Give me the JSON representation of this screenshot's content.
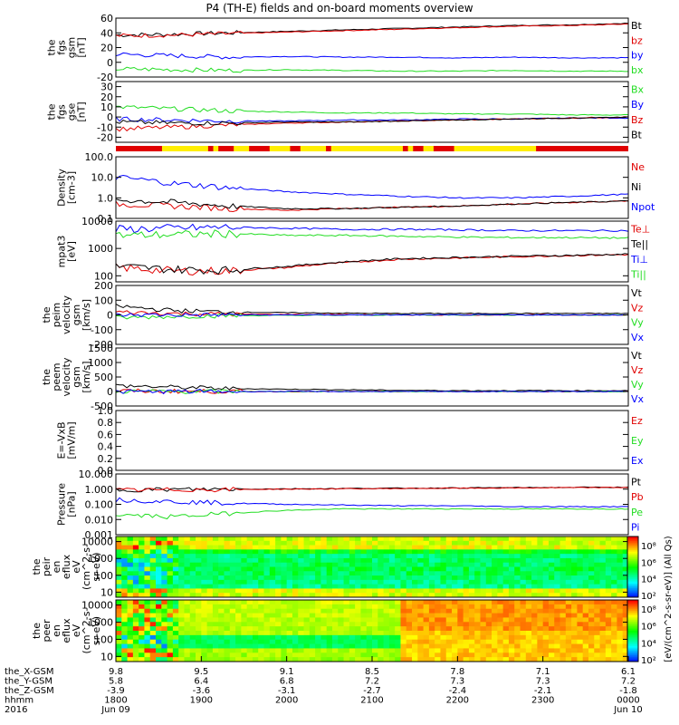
{
  "title": "P4 (TH-E) fields and on-board moments overview",
  "colors": {
    "red": "#e00000",
    "green": "#22dd22",
    "blue": "#0000ff",
    "black": "#000000",
    "yellow": "#ffee00",
    "orange": "#ff8c00"
  },
  "chart_data": [
    {
      "id": "fgs-gsm",
      "type": "line",
      "ylabel": [
        "the",
        "fgs",
        "gsm",
        "[nT]"
      ],
      "ylim": [
        -20,
        60
      ],
      "ticks": [
        "60",
        "40",
        "20",
        "0",
        "-20"
      ],
      "tickValues": [
        60,
        40,
        20,
        0,
        -20
      ],
      "series": [
        {
          "name": "Bt",
          "color": "#000000",
          "values": [
            37,
            38,
            40,
            42,
            44,
            46,
            48,
            50,
            51,
            53
          ]
        },
        {
          "name": "bz",
          "color": "#e00000",
          "values": [
            36,
            37,
            39,
            41,
            43,
            45,
            47,
            49,
            50,
            52
          ]
        },
        {
          "name": "by",
          "color": "#0000ff",
          "values": [
            11,
            9,
            7,
            8,
            7,
            7,
            6,
            7,
            6,
            6
          ]
        },
        {
          "name": "bx",
          "color": "#22dd22",
          "values": [
            -9,
            -10,
            -11,
            -10,
            -11,
            -12,
            -12,
            -11,
            -12,
            -12
          ]
        }
      ]
    },
    {
      "id": "fgs-gse",
      "type": "line",
      "ylabel": [
        "the",
        "fgs",
        "gse",
        "[nT]"
      ],
      "ylim": [
        -25,
        35
      ],
      "ticks": [
        "30",
        "20",
        "10",
        "0",
        "-10",
        "-20"
      ],
      "tickValues": [
        30,
        20,
        10,
        0,
        -10,
        -20
      ],
      "series": [
        {
          "name": "Bx",
          "color": "#22dd22",
          "values": [
            10,
            8,
            6,
            5,
            4,
            4,
            3,
            3,
            2,
            2
          ]
        },
        {
          "name": "By",
          "color": "#0000ff",
          "values": [
            -2,
            -3,
            -4,
            -4,
            -3,
            -3,
            -2,
            -2,
            -1,
            -1
          ]
        },
        {
          "name": "Bz",
          "color": "#e00000",
          "values": [
            -12,
            -10,
            -8,
            -6,
            -5,
            -4,
            -3,
            -2,
            -1,
            0
          ]
        },
        {
          "name": "Bt",
          "color": "#000000",
          "values": [
            -5,
            -6,
            -6,
            -5,
            -5,
            -4,
            -3,
            -2,
            -1,
            0
          ]
        }
      ]
    },
    {
      "id": "density",
      "type": "line",
      "scale": "log",
      "ylabel": [
        "Density",
        "[cm-3]"
      ],
      "ylim": [
        0.1,
        100
      ],
      "ticks": [
        "100.0",
        "10.0",
        "1.0",
        "0.1"
      ],
      "tickValues": [
        100,
        10,
        1,
        0.1
      ],
      "series": [
        {
          "name": "Ne",
          "color": "#e00000",
          "values": [
            0.5,
            0.4,
            0.3,
            0.25,
            0.3,
            0.35,
            0.4,
            0.5,
            0.6,
            0.7
          ]
        },
        {
          "name": "Ni",
          "color": "#000000",
          "values": [
            0.8,
            0.6,
            0.4,
            0.3,
            0.3,
            0.35,
            0.4,
            0.5,
            0.6,
            0.7
          ]
        },
        {
          "name": "Npot",
          "color": "#0000ff",
          "values": [
            10,
            5,
            3,
            2,
            1.5,
            1.2,
            1.0,
            1.0,
            1.2,
            1.5
          ]
        }
      ]
    },
    {
      "id": "temperature",
      "type": "line",
      "scale": "log",
      "ylabel": [
        "mpat3",
        "[eV]"
      ],
      "ylim": [
        60,
        10000
      ],
      "ticks": [
        "10000",
        "1000",
        "100"
      ],
      "tickValues": [
        10000,
        1000,
        100
      ],
      "series": [
        {
          "name": "Te⊥",
          "color": "#e00000",
          "values": [
            200,
            150,
            150,
            200,
            300,
            400,
            450,
            500,
            550,
            600
          ]
        },
        {
          "name": "Te||",
          "color": "#000000",
          "values": [
            220,
            170,
            160,
            220,
            320,
            420,
            470,
            520,
            560,
            620
          ]
        },
        {
          "name": "Ti⊥",
          "color": "#0000ff",
          "values": [
            5000,
            5500,
            6000,
            5500,
            5000,
            5000,
            4800,
            4500,
            4500,
            4500
          ]
        },
        {
          "name": "Ti||",
          "color": "#22dd22",
          "values": [
            3000,
            3200,
            3500,
            3000,
            3000,
            2800,
            2600,
            2500,
            2500,
            2400
          ]
        }
      ]
    },
    {
      "id": "peim-velocity",
      "type": "line",
      "ylabel": [
        "the",
        "peim",
        "velocity",
        "gsm",
        "[km/s]"
      ],
      "ylim": [
        -200,
        200
      ],
      "ticks": [
        "200",
        "100",
        "0",
        "-100",
        "-200"
      ],
      "tickValues": [
        200,
        100,
        0,
        -100,
        -200
      ],
      "series": [
        {
          "name": "Vt",
          "color": "#000000",
          "values": [
            60,
            30,
            20,
            15,
            12,
            10,
            10,
            10,
            10,
            10
          ]
        },
        {
          "name": "Vz",
          "color": "#e00000",
          "values": [
            20,
            10,
            5,
            3,
            2,
            0,
            0,
            0,
            0,
            0
          ]
        },
        {
          "name": "Vy",
          "color": "#22dd22",
          "values": [
            -20,
            -10,
            -5,
            -3,
            -2,
            0,
            0,
            0,
            0,
            0
          ]
        },
        {
          "name": "Vx",
          "color": "#0000ff",
          "values": [
            0,
            0,
            0,
            0,
            0,
            0,
            0,
            0,
            0,
            0
          ]
        }
      ]
    },
    {
      "id": "peem-velocity",
      "type": "line",
      "ylabel": [
        "the",
        "peem",
        "velocity",
        "gsm",
        "[km/s]"
      ],
      "ylim": [
        -500,
        1500
      ],
      "ticks": [
        "1500",
        "1000",
        "500",
        "0",
        "-500"
      ],
      "tickValues": [
        1500,
        1000,
        500,
        0,
        -500
      ],
      "series": [
        {
          "name": "Vt",
          "color": "#000000",
          "values": [
            200,
            150,
            100,
            80,
            60,
            40,
            30,
            30,
            30,
            30
          ]
        },
        {
          "name": "Vz",
          "color": "#e00000",
          "values": [
            20,
            10,
            0,
            0,
            0,
            0,
            0,
            0,
            0,
            0
          ]
        },
        {
          "name": "Vy",
          "color": "#22dd22",
          "values": [
            0,
            0,
            0,
            0,
            0,
            0,
            0,
            0,
            0,
            0
          ]
        },
        {
          "name": "Vx",
          "color": "#0000ff",
          "values": [
            -10,
            0,
            0,
            0,
            0,
            0,
            0,
            0,
            0,
            0
          ]
        }
      ]
    },
    {
      "id": "efield",
      "type": "line",
      "ylabel": [
        "E=-VxB",
        "[mV/m]"
      ],
      "ylim": [
        0,
        1
      ],
      "ticks": [
        "1.0",
        "0.8",
        "0.6",
        "0.4",
        "0.2",
        "0.0"
      ],
      "tickValues": [
        1.0,
        0.8,
        0.6,
        0.4,
        0.2,
        0.0
      ],
      "series": [
        {
          "name": "Ez",
          "color": "#e00000",
          "values": []
        },
        {
          "name": "Ey",
          "color": "#22dd22",
          "values": []
        },
        {
          "name": "Ex",
          "color": "#0000ff",
          "values": []
        }
      ]
    },
    {
      "id": "pressure",
      "type": "line",
      "scale": "log",
      "ylabel": [
        "Pressure",
        "[nPa]"
      ],
      "ylim": [
        0.001,
        10
      ],
      "ticks": [
        "10.000",
        "1.000",
        "0.100",
        "0.010",
        "0.001"
      ],
      "tickValues": [
        10,
        1,
        0.1,
        0.01,
        0.001
      ],
      "series": [
        {
          "name": "Pt",
          "color": "#000000",
          "values": [
            0.9,
            0.95,
            1.0,
            1.05,
            1.1,
            1.15,
            1.2,
            1.25,
            1.3,
            1.35
          ]
        },
        {
          "name": "Pb",
          "color": "#e00000",
          "values": [
            0.85,
            0.9,
            0.95,
            1.0,
            1.05,
            1.1,
            1.15,
            1.2,
            1.25,
            1.3
          ]
        },
        {
          "name": "Pe",
          "color": "#22dd22",
          "values": [
            0.02,
            0.015,
            0.025,
            0.04,
            0.05,
            0.05,
            0.05,
            0.05,
            0.05,
            0.05
          ]
        },
        {
          "name": "Pi",
          "color": "#0000ff",
          "values": [
            0.2,
            0.15,
            0.12,
            0.1,
            0.09,
            0.08,
            0.08,
            0.07,
            0.07,
            0.07
          ]
        }
      ]
    },
    {
      "id": "peir-spectrogram",
      "type": "heatmap",
      "ylabel": [
        "the",
        "peir",
        "en",
        "eflux",
        "eV",
        "(cm^2-s-",
        "sr-eV)"
      ],
      "ticks": [
        "10000",
        "1000",
        "100",
        "10"
      ],
      "tickValues": [
        10000,
        1000,
        100,
        10
      ]
    },
    {
      "id": "peer-spectrogram",
      "type": "heatmap",
      "ylabel": [
        "the",
        "peer",
        "en",
        "eflux",
        "eV",
        "(cm^2-s-",
        "sr-eV)"
      ],
      "ticks": [
        "10000",
        "1000",
        "100",
        "10"
      ],
      "tickValues": [
        10000,
        1000,
        100,
        10
      ]
    }
  ],
  "colorbar": {
    "label": "[eV/(cm^2-s-sr-eV)] (All Qs)",
    "ticks1": [
      "10⁸",
      "10⁶",
      "10⁴",
      "10²"
    ],
    "ticks2": [
      "10⁸",
      "10⁶",
      "10⁴",
      "10²"
    ]
  },
  "xaxis": {
    "rows": [
      {
        "label": "the_X-GSM",
        "values": [
          "9.8",
          "9.5",
          "9.1",
          "8.5",
          "7.8",
          "7.1",
          "6.1"
        ]
      },
      {
        "label": "the_Y-GSM",
        "values": [
          "5.8",
          "6.4",
          "6.8",
          "7.2",
          "7.3",
          "7.3",
          "7.2"
        ]
      },
      {
        "label": "the_Z-GSM",
        "values": [
          "-3.9",
          "-3.6",
          "-3.1",
          "-2.7",
          "-2.4",
          "-2.1",
          "-1.8"
        ]
      },
      {
        "label": "hhmm",
        "values": [
          "1800",
          "1900",
          "2000",
          "2100",
          "2200",
          "2300",
          "0000"
        ]
      },
      {
        "label": "2016",
        "values": [
          "Jun 09",
          "",
          "",
          "",
          "",
          "",
          "Jun 10"
        ]
      }
    ]
  }
}
